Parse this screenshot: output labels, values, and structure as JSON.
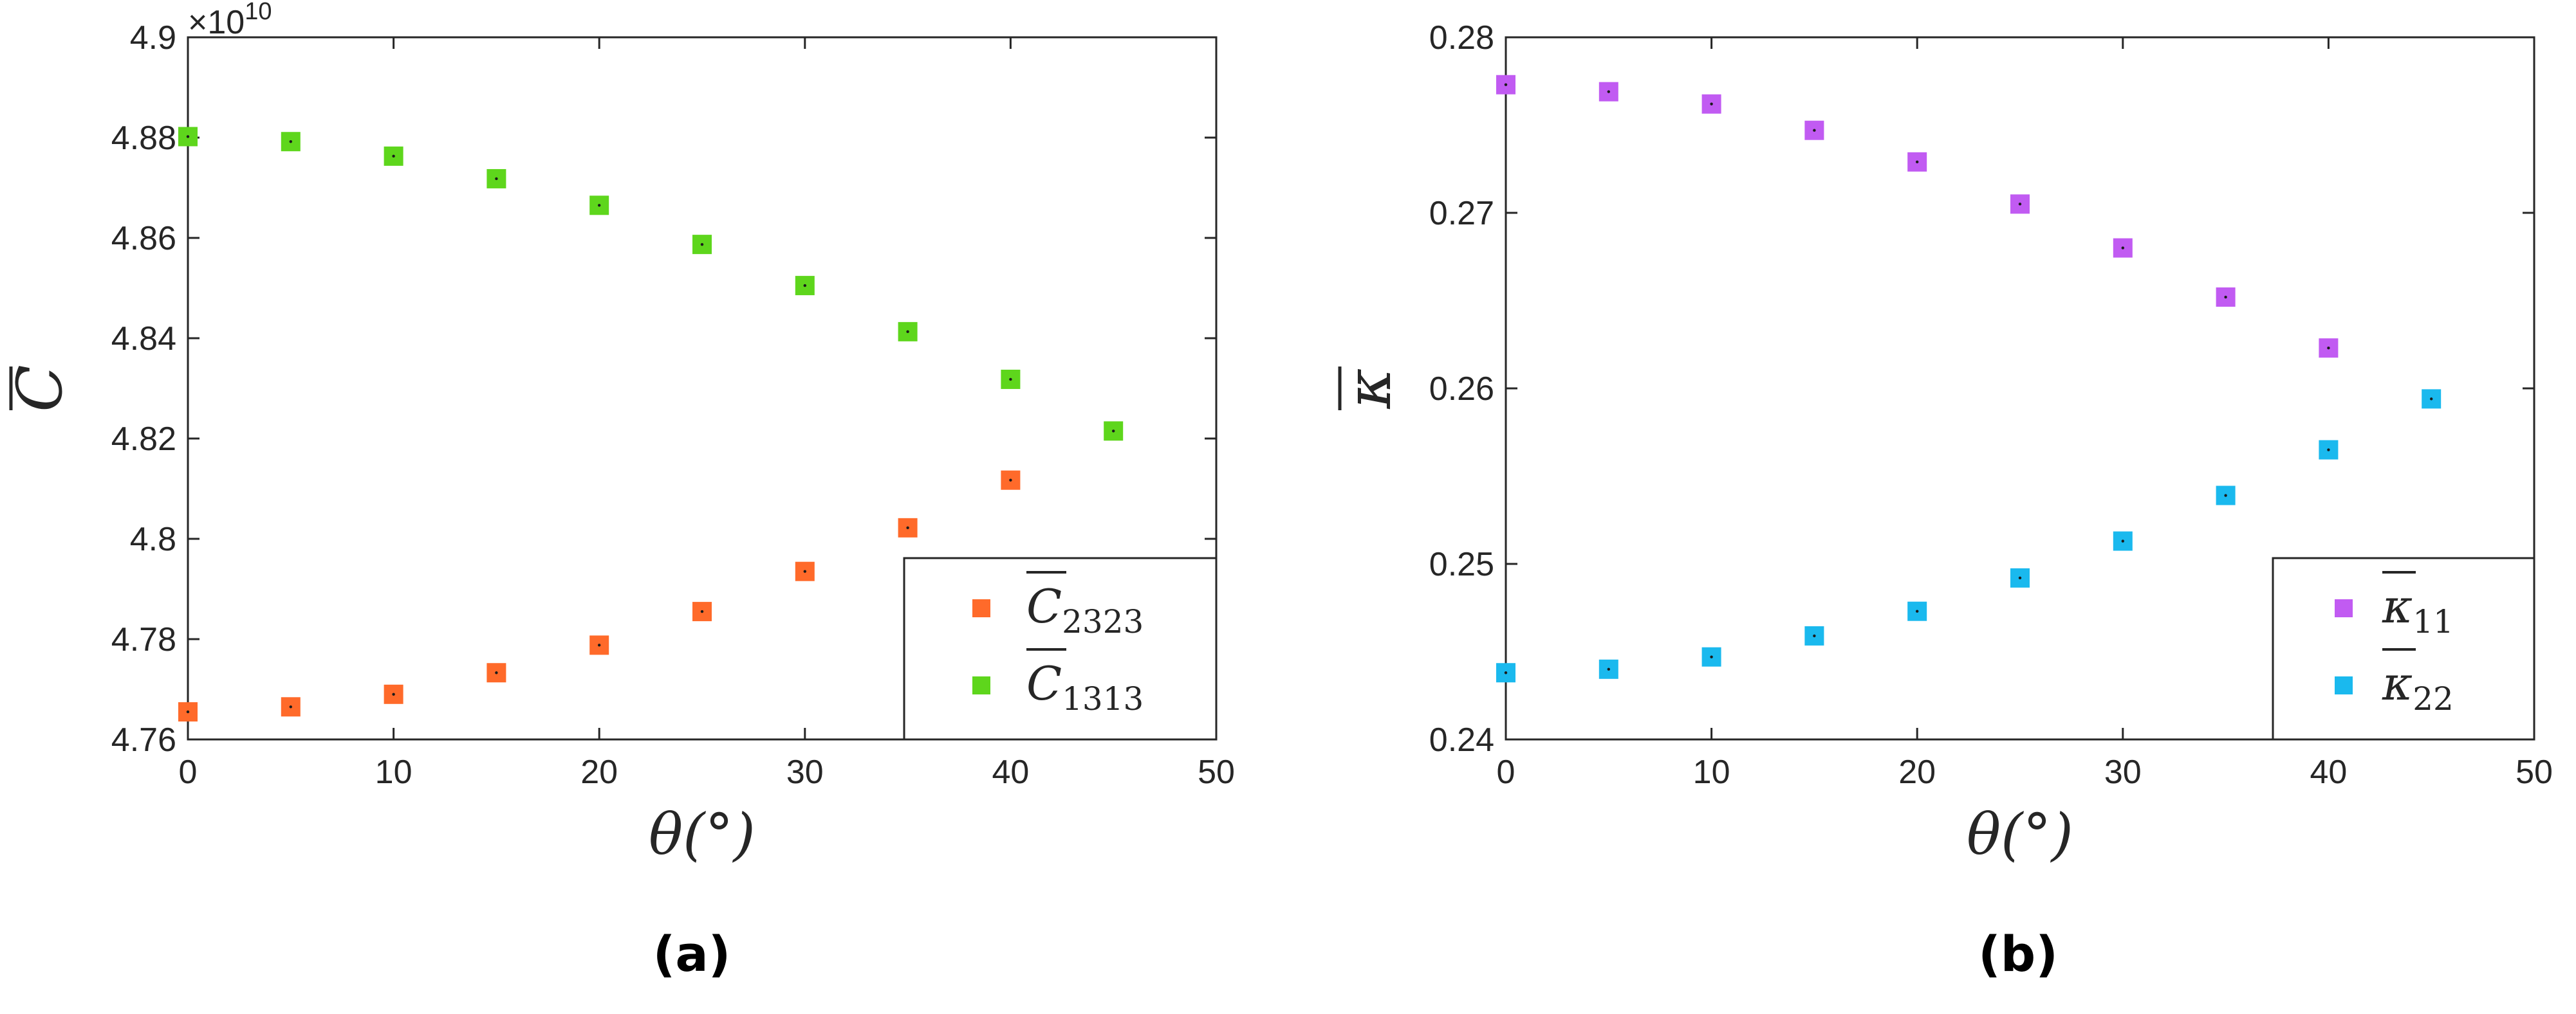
{
  "chart_data": [
    {
      "type": "scatter",
      "caption": "(a)",
      "xlabel": "θ(°)",
      "ylabel": "C",
      "exponent_label": "×10",
      "exponent_power": "10",
      "xlim": [
        0,
        50
      ],
      "ylim": [
        4.76,
        4.9
      ],
      "xticks": [
        0,
        10,
        20,
        30,
        40,
        50
      ],
      "xtick_labels": [
        "0",
        "10",
        "20",
        "30",
        "40",
        "50"
      ],
      "yticks": [
        4.76,
        4.78,
        4.8,
        4.82,
        4.84,
        4.86,
        4.88,
        4.9
      ],
      "ytick_labels": [
        "4.76",
        "4.78",
        "4.8",
        "4.82",
        "4.84",
        "4.86",
        "4.88",
        "4.9"
      ],
      "grid": false,
      "legend_position": "bottom-right",
      "series": [
        {
          "name": "C",
          "subscript": "2323",
          "color": "#ff6a2a",
          "x": [
            0,
            5,
            10,
            15,
            20,
            25,
            30,
            35,
            40
          ],
          "y": [
            4.7655,
            4.7665,
            4.769,
            4.7733,
            4.7788,
            4.7855,
            4.7935,
            4.8022,
            4.8117
          ]
        },
        {
          "name": "C",
          "subscript": "1313",
          "color": "#5ed61c",
          "x": [
            0,
            5,
            10,
            15,
            20,
            25,
            30,
            35,
            40,
            45
          ],
          "y": [
            4.8802,
            4.8792,
            4.8763,
            4.8718,
            4.8665,
            4.8587,
            4.8505,
            4.8413,
            4.8318,
            4.8215
          ]
        }
      ]
    },
    {
      "type": "scatter",
      "caption": "(b)",
      "xlabel": "θ(°)",
      "ylabel": "κ",
      "xlim": [
        0,
        50
      ],
      "ylim": [
        0.24,
        0.28
      ],
      "xticks": [
        0,
        10,
        20,
        30,
        40,
        50
      ],
      "xtick_labels": [
        "0",
        "10",
        "20",
        "30",
        "40",
        "50"
      ],
      "yticks": [
        0.24,
        0.25,
        0.26,
        0.27,
        0.28
      ],
      "ytick_labels": [
        "0.24",
        "0.25",
        "0.26",
        "0.27",
        "0.28"
      ],
      "grid": false,
      "legend_position": "bottom-right",
      "series": [
        {
          "name": "κ",
          "subscript": "11",
          "color": "#c15bf2",
          "x": [
            0,
            5,
            10,
            15,
            20,
            25,
            30,
            35,
            40
          ],
          "y": [
            0.2773,
            0.2769,
            0.2762,
            0.2747,
            0.2729,
            0.2705,
            0.268,
            0.2652,
            0.2623
          ]
        },
        {
          "name": "κ",
          "subscript": "22",
          "color": "#1ab9ee",
          "x": [
            0,
            5,
            10,
            15,
            20,
            25,
            30,
            35,
            40,
            45
          ],
          "y": [
            0.2438,
            0.244,
            0.2447,
            0.2459,
            0.2473,
            0.2492,
            0.2513,
            0.2539,
            0.2565,
            0.2594
          ]
        }
      ]
    }
  ]
}
